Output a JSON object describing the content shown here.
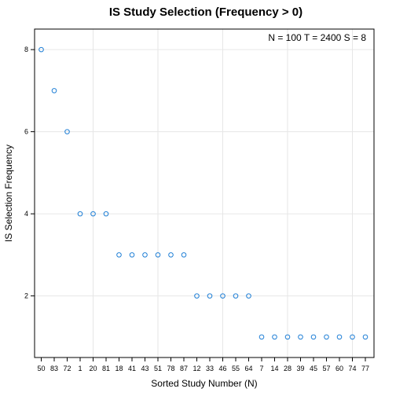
{
  "chart_data": {
    "type": "scatter",
    "title": "IS Study Selection (Frequency > 0)",
    "xlabel": "Sorted Study Number (N)",
    "ylabel": "IS Selection Frequency",
    "annotation": "N = 100  T = 2400  S = 8",
    "categories": [
      "50",
      "83",
      "72",
      "1",
      "20",
      "81",
      "18",
      "41",
      "43",
      "51",
      "78",
      "87",
      "12",
      "33",
      "46",
      "55",
      "64",
      "7",
      "14",
      "28",
      "39",
      "45",
      "57",
      "60",
      "74",
      "77"
    ],
    "values": [
      8,
      7,
      6,
      4,
      4,
      4,
      3,
      3,
      3,
      3,
      3,
      3,
      2,
      2,
      2,
      2,
      2,
      1,
      1,
      1,
      1,
      1,
      1,
      1,
      1,
      1
    ],
    "ylim": [
      0.5,
      8.5
    ],
    "yticks": [
      2,
      4,
      6,
      8
    ],
    "ytick_labels": [
      "2",
      "4",
      "6",
      "8"
    ],
    "grid": true,
    "colors": {
      "point": "#1f7fd6",
      "grid": "#e6e6e6",
      "frame": "#000000"
    }
  }
}
